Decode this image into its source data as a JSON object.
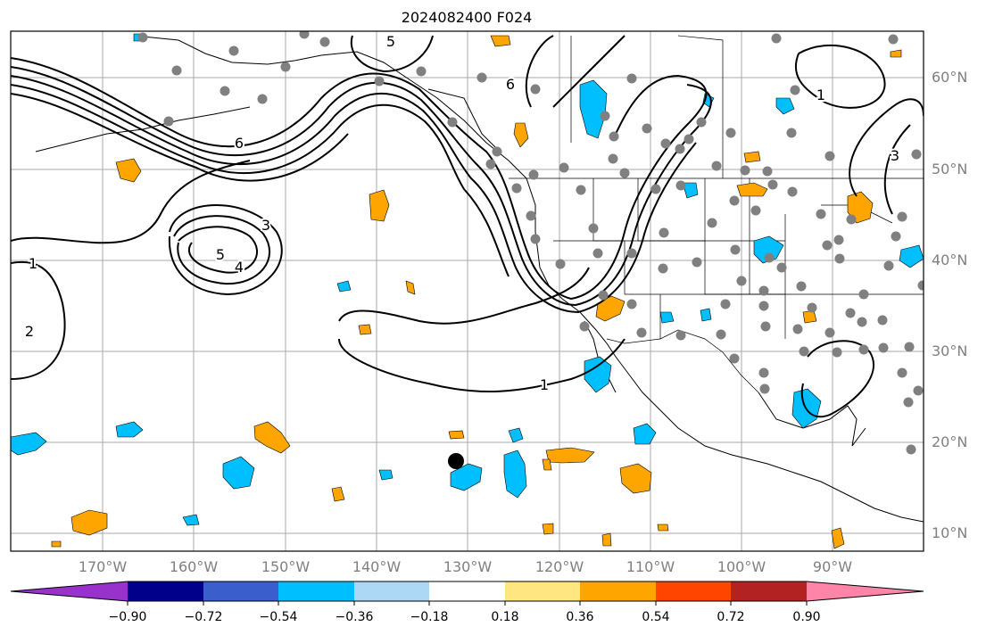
{
  "title": "2024082400 F024",
  "lat_labels": [
    "60°N",
    "50°N",
    "40°N",
    "30°N",
    "20°N",
    "10°N"
  ],
  "lon_labels": [
    "170°W",
    "160°W",
    "150°W",
    "140°W",
    "130°W",
    "120°W",
    "110°W",
    "100°W",
    "90°W"
  ],
  "colorbar": {
    "ticks": [
      "−0.90",
      "−0.72",
      "−0.54",
      "−0.36",
      "−0.18",
      "0.18",
      "0.36",
      "0.54",
      "0.72",
      "0.90"
    ],
    "colors": [
      "#9932cc",
      "#00008b",
      "#3a5fcd",
      "#00bfff",
      "#add8f5",
      "#ffffff",
      "#ffe680",
      "#ffa500",
      "#ff4500",
      "#b22222",
      "#ff85a8"
    ]
  },
  "contour_labels": [
    "1",
    "2",
    "3",
    "4",
    "5",
    "6",
    "1",
    "3",
    "5",
    "6",
    "1"
  ],
  "colors": {
    "contour": "#000000",
    "station_dot": "#808080",
    "grid": "#a9a9a9",
    "positive": "#ffa500",
    "negative": "#00bfff"
  }
}
